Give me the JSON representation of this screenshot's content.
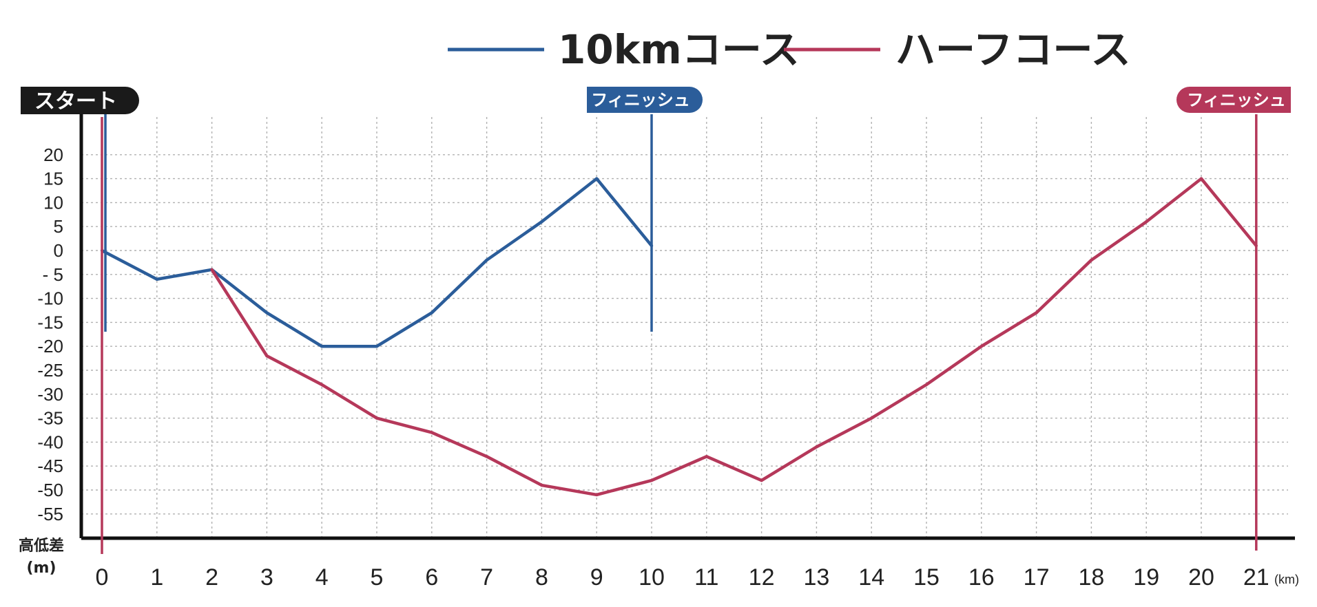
{
  "chart_data": {
    "type": "line",
    "legend": {
      "placement": "top-center"
    },
    "grid": true,
    "ylabel": "高低差",
    "yunit": "(m)",
    "xunit": "(km)",
    "x": [
      0,
      1,
      2,
      3,
      4,
      5,
      6,
      7,
      8,
      9,
      10,
      11,
      12,
      13,
      14,
      15,
      16,
      17,
      18,
      19,
      20,
      21
    ],
    "x_tick_labels": [
      "0",
      "1",
      "2",
      "3",
      "4",
      "5",
      "6",
      "7",
      "8",
      "9",
      "10",
      "11",
      "12",
      "13",
      "14",
      "15",
      "16",
      "17",
      "18",
      "19",
      "20",
      "21"
    ],
    "y_tick_labels": [
      "20",
      "15",
      "10",
      "5",
      "0",
      "- 5",
      "-10",
      "-15",
      "-20",
      "-25",
      "-30",
      "-35",
      "-40",
      "-45",
      "-50",
      "-55"
    ],
    "y_tick_values": [
      20,
      15,
      10,
      5,
      0,
      -5,
      -10,
      -15,
      -20,
      -25,
      -30,
      -35,
      -40,
      -45,
      -50,
      -55
    ],
    "xlim": [
      0,
      21
    ],
    "ylim": [
      -60,
      20
    ],
    "series": [
      {
        "name": "10kmコース",
        "color": "#2b5d9a",
        "x": [
          0,
          1,
          2,
          3,
          4,
          5,
          6,
          7,
          8,
          9,
          10
        ],
        "values": [
          0,
          -6,
          -4,
          -13,
          -20,
          -20,
          -13,
          -2,
          6,
          15,
          1
        ]
      },
      {
        "name": "ハーフコース",
        "color": "#b5385a",
        "x": [
          2,
          3,
          4,
          5,
          6,
          7,
          8,
          9,
          10,
          11,
          12,
          13,
          14,
          15,
          16,
          17,
          18,
          19,
          20,
          21
        ],
        "values": [
          -4,
          -22,
          -28,
          -35,
          -38,
          -43,
          -49,
          -51,
          -48,
          -43,
          -48,
          -41,
          -35,
          -28,
          -20,
          -13,
          -2,
          6,
          15,
          1
        ]
      }
    ],
    "markers": [
      {
        "label": "スタート",
        "x": 0,
        "color": "#1a1a1a"
      },
      {
        "label": "フィニッシュ",
        "x": 10,
        "color": "#2b5d9a"
      },
      {
        "label": "フィニッシュ",
        "x": 21,
        "color": "#b5385a"
      }
    ]
  }
}
